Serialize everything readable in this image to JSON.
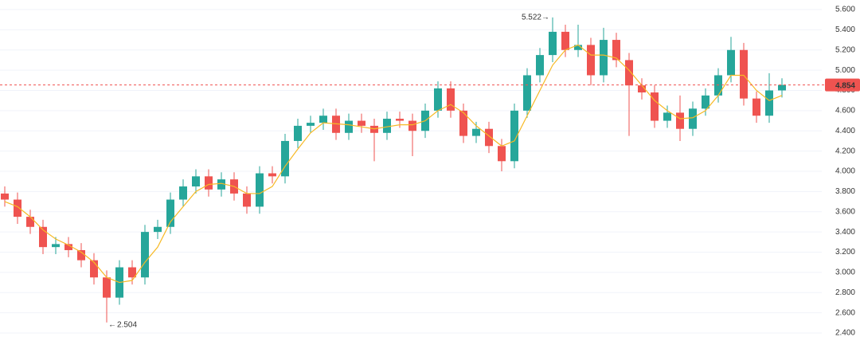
{
  "chart_data": {
    "type": "candlestick",
    "open": [
      3.78,
      3.72,
      3.55,
      3.45,
      3.25,
      3.28,
      3.22,
      3.12,
      2.95,
      2.75,
      3.05,
      2.95,
      3.4,
      3.45,
      3.72,
      3.85,
      3.95,
      3.82,
      3.92,
      3.78,
      3.65,
      3.98,
      3.95,
      4.3,
      4.45,
      4.48,
      4.55,
      4.38,
      4.5,
      4.45,
      4.38,
      4.52,
      4.5,
      4.4,
      4.6,
      4.82,
      4.6,
      4.35,
      4.42,
      4.25,
      4.1,
      4.6,
      4.95,
      5.15,
      5.38,
      5.2,
      5.25,
      4.95,
      5.3,
      5.1,
      4.85,
      4.78,
      4.5,
      4.58,
      4.42,
      4.62,
      4.75,
      4.95,
      5.2,
      4.72,
      4.55,
      4.8
    ],
    "high": [
      3.85,
      3.79,
      3.62,
      3.52,
      3.35,
      3.35,
      3.29,
      3.19,
      3.02,
      3.12,
      3.12,
      3.47,
      3.52,
      3.79,
      3.92,
      4.02,
      4.02,
      3.99,
      3.99,
      3.85,
      4.05,
      4.05,
      4.37,
      4.52,
      4.55,
      4.62,
      4.62,
      4.57,
      4.57,
      4.52,
      4.59,
      4.59,
      4.57,
      4.67,
      4.89,
      4.89,
      4.67,
      4.49,
      4.49,
      4.32,
      4.67,
      5.02,
      5.22,
      5.522,
      5.45,
      5.45,
      5.32,
      5.42,
      5.37,
      5.17,
      4.92,
      4.85,
      4.65,
      4.75,
      4.69,
      4.82,
      5.02,
      5.33,
      5.27,
      4.79,
      4.97,
      4.92
    ],
    "low": [
      3.65,
      3.48,
      3.38,
      3.18,
      3.18,
      3.15,
      3.05,
      2.88,
      2.504,
      2.68,
      2.88,
      2.88,
      3.33,
      3.38,
      3.65,
      3.78,
      3.75,
      3.75,
      3.71,
      3.58,
      3.58,
      3.88,
      3.88,
      4.23,
      4.38,
      4.41,
      4.31,
      4.31,
      4.38,
      4.1,
      4.31,
      4.43,
      4.15,
      4.33,
      4.53,
      4.53,
      4.28,
      4.28,
      4.18,
      4.0,
      4.03,
      4.53,
      4.88,
      5.08,
      5.13,
      5.13,
      4.85,
      4.88,
      5.03,
      4.35,
      4.71,
      4.43,
      4.43,
      4.3,
      4.35,
      4.55,
      4.68,
      4.88,
      4.65,
      4.48,
      4.48,
      4.73
    ],
    "close": [
      3.72,
      3.55,
      3.45,
      3.25,
      3.28,
      3.22,
      3.12,
      2.95,
      2.75,
      3.05,
      2.95,
      3.4,
      3.45,
      3.72,
      3.85,
      3.95,
      3.82,
      3.92,
      3.78,
      3.65,
      3.98,
      3.95,
      4.3,
      4.45,
      4.48,
      4.55,
      4.38,
      4.5,
      4.45,
      4.38,
      4.52,
      4.5,
      4.4,
      4.6,
      4.82,
      4.6,
      4.35,
      4.42,
      4.25,
      4.1,
      4.6,
      4.95,
      5.15,
      5.38,
      5.2,
      5.25,
      4.95,
      5.3,
      5.1,
      4.85,
      4.78,
      4.5,
      4.58,
      4.42,
      4.62,
      4.75,
      4.95,
      5.2,
      4.72,
      4.55,
      4.8,
      4.854
    ],
    "up_color": "#26a69a",
    "down_color": "#ef5350",
    "moving_average": {
      "color": "#f7b924",
      "values": [
        3.7,
        3.65,
        3.55,
        3.42,
        3.33,
        3.27,
        3.2,
        3.1,
        2.95,
        2.9,
        2.92,
        3.1,
        3.25,
        3.5,
        3.65,
        3.8,
        3.87,
        3.88,
        3.85,
        3.78,
        3.78,
        3.85,
        4.05,
        4.22,
        4.38,
        4.48,
        4.47,
        4.46,
        4.44,
        4.42,
        4.44,
        4.46,
        4.46,
        4.5,
        4.6,
        4.66,
        4.58,
        4.45,
        4.35,
        4.25,
        4.3,
        4.55,
        4.8,
        5.05,
        5.2,
        5.25,
        5.15,
        5.15,
        5.12,
        5.0,
        4.85,
        4.7,
        4.6,
        4.52,
        4.53,
        4.6,
        4.75,
        4.95,
        4.95,
        4.8,
        4.7,
        4.75
      ]
    },
    "price_line_color": "#ef5350",
    "ylim": [
      2.4,
      5.6
    ],
    "yticks": [
      {
        "value": 2.4,
        "label": "2.400"
      },
      {
        "value": 2.6,
        "label": "2.600"
      },
      {
        "value": 2.8,
        "label": "2.800"
      },
      {
        "value": 3.0,
        "label": "3.000"
      },
      {
        "value": 3.2,
        "label": "3.200"
      },
      {
        "value": 3.4,
        "label": "3.400"
      },
      {
        "value": 3.6,
        "label": "3.600"
      },
      {
        "value": 3.8,
        "label": "3.800"
      },
      {
        "value": 4.0,
        "label": "4.000"
      },
      {
        "value": 4.2,
        "label": "4.200"
      },
      {
        "value": 4.4,
        "label": "4.400"
      },
      {
        "value": 4.6,
        "label": "4.600"
      },
      {
        "value": 4.8,
        "label": "4.800"
      },
      {
        "value": 5.0,
        "label": "5.000"
      },
      {
        "value": 5.2,
        "label": "5.200"
      },
      {
        "value": 5.4,
        "label": "5.400"
      },
      {
        "value": 5.6,
        "label": "5.600"
      }
    ],
    "grid": true
  }
}
